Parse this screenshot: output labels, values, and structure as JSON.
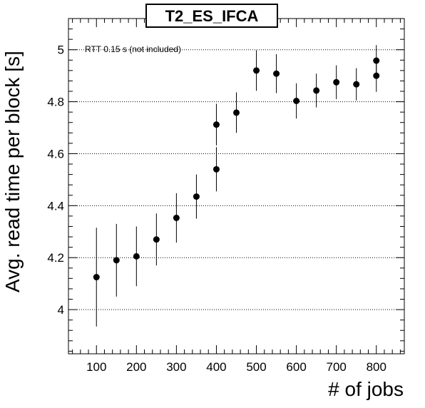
{
  "chart_data": {
    "type": "scatter",
    "title": "T2_ES_IFCA",
    "xlabel": "# of jobs",
    "ylabel": "Avg. read time per block [s]",
    "annotation": "RTT 0.15 s (not included)",
    "xlim": [
      30,
      870
    ],
    "ylim": [
      3.83,
      5.12
    ],
    "x_ticks": [
      100,
      200,
      300,
      400,
      500,
      600,
      700,
      800
    ],
    "y_ticks": [
      4,
      4.2,
      4.4,
      4.6,
      4.8,
      5
    ],
    "x_tick_labels": [
      "100",
      "200",
      "300",
      "400",
      "500",
      "600",
      "700",
      "800"
    ],
    "y_tick_labels": [
      "4",
      "4.2",
      "4.4",
      "4.6",
      "4.8",
      "5"
    ],
    "grid": "horizontal dotted",
    "legend": "none",
    "marker_color": "#000000",
    "points": [
      {
        "x": 100,
        "y": 4.125,
        "err": 0.19
      },
      {
        "x": 150,
        "y": 4.19,
        "err": 0.14
      },
      {
        "x": 200,
        "y": 4.205,
        "err": 0.115
      },
      {
        "x": 250,
        "y": 4.27,
        "err": 0.1
      },
      {
        "x": 300,
        "y": 4.353,
        "err": 0.095
      },
      {
        "x": 350,
        "y": 4.435,
        "err": 0.085
      },
      {
        "x": 400,
        "y": 4.54,
        "err": 0.085
      },
      {
        "x": 400,
        "y": 4.712,
        "err": 0.08
      },
      {
        "x": 450,
        "y": 4.758,
        "err": 0.078
      },
      {
        "x": 500,
        "y": 4.92,
        "err": 0.078
      },
      {
        "x": 550,
        "y": 4.908,
        "err": 0.075
      },
      {
        "x": 600,
        "y": 4.803,
        "err": 0.068
      },
      {
        "x": 650,
        "y": 4.843,
        "err": 0.065
      },
      {
        "x": 700,
        "y": 4.875,
        "err": 0.065
      },
      {
        "x": 750,
        "y": 4.867,
        "err": 0.062
      },
      {
        "x": 800,
        "y": 4.9,
        "err": 0.062
      },
      {
        "x": 800,
        "y": 4.958,
        "err": 0.06
      }
    ]
  }
}
